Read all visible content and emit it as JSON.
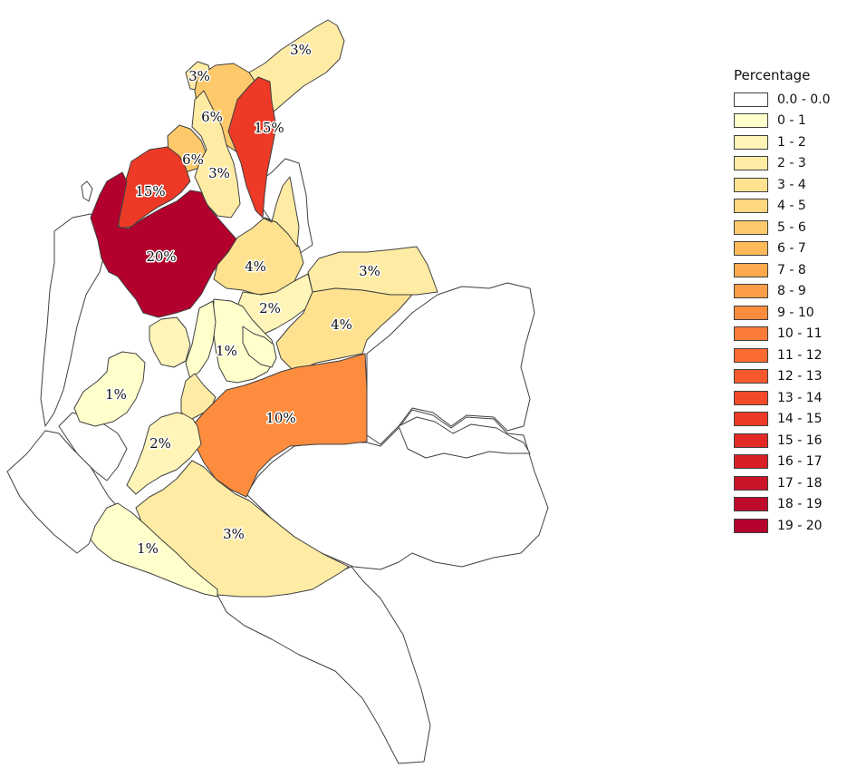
{
  "legend": {
    "title": "Percentage",
    "items": [
      {
        "label": "0.0 - 0.0",
        "color": "#ffffff"
      },
      {
        "label": "0 - 1",
        "color": "#ffffcc"
      },
      {
        "label": "1 - 2",
        "color": "#fff5b8"
      },
      {
        "label": "2 - 3",
        "color": "#ffeca4"
      },
      {
        "label": "3 - 4",
        "color": "#fee290"
      },
      {
        "label": "4 - 5",
        "color": "#fed77e"
      },
      {
        "label": "5 - 6",
        "color": "#fec96a"
      },
      {
        "label": "6 - 7",
        "color": "#feba5a"
      },
      {
        "label": "7 - 8",
        "color": "#fdab4e"
      },
      {
        "label": "8 - 9",
        "color": "#fd9c46"
      },
      {
        "label": "9 - 10",
        "color": "#fd8c3e"
      },
      {
        "label": "10 - 11",
        "color": "#fc7c37"
      },
      {
        "label": "11 - 12",
        "color": "#fb6a31"
      },
      {
        "label": "12 - 13",
        "color": "#f7592c"
      },
      {
        "label": "13 - 14",
        "color": "#f24a29"
      },
      {
        "label": "14 - 15",
        "color": "#ec3a26"
      },
      {
        "label": "15 - 16",
        "color": "#e32a24"
      },
      {
        "label": "16 - 17",
        "color": "#d81f26"
      },
      {
        "label": "17 - 18",
        "color": "#cc1429"
      },
      {
        "label": "18 - 19",
        "color": "#be0a2b"
      },
      {
        "label": "19 - 20",
        "color": "#b3002c"
      }
    ]
  },
  "regions": [
    {
      "id": "r01",
      "label": "3%",
      "value": 3,
      "color": "#ffeca4"
    },
    {
      "id": "r02",
      "label": "3%",
      "value": 3,
      "color": "#ffeca4"
    },
    {
      "id": "r03",
      "label": "6%",
      "value": 6,
      "color": "#fec96a"
    },
    {
      "id": "r04",
      "label": "15%",
      "value": 15,
      "color": "#ec3a26"
    },
    {
      "id": "r05",
      "label": "6%",
      "value": 6,
      "color": "#fec96a"
    },
    {
      "id": "r06",
      "label": "3%",
      "value": 3,
      "color": "#ffeca4"
    },
    {
      "id": "r07",
      "label": "15%",
      "value": 15,
      "color": "#ec3a26"
    },
    {
      "id": "r08",
      "label": "20%",
      "value": 20,
      "color": "#b3002c"
    },
    {
      "id": "r09",
      "label": "4%",
      "value": 4,
      "color": "#fee290"
    },
    {
      "id": "r10",
      "label": "3%",
      "value": 3,
      "color": "#ffeca4"
    },
    {
      "id": "r11",
      "label": "2%",
      "value": 2,
      "color": "#fff5b8"
    },
    {
      "id": "r12",
      "label": "4%",
      "value": 4,
      "color": "#fee290"
    },
    {
      "id": "r13",
      "label": "1%",
      "value": 1,
      "color": "#ffffcc"
    },
    {
      "id": "r14",
      "label": "10%",
      "value": 10,
      "color": "#fd8c3e"
    },
    {
      "id": "r15",
      "label": "1%",
      "value": 1,
      "color": "#ffffcc"
    },
    {
      "id": "r16",
      "label": "2%",
      "value": 2,
      "color": "#fff5b8"
    },
    {
      "id": "r17",
      "label": "3%",
      "value": 3,
      "color": "#ffeca4"
    },
    {
      "id": "r18",
      "label": "1%",
      "value": 1,
      "color": "#ffffcc"
    },
    {
      "id": "r19",
      "label": "",
      "value": 1,
      "color": "#ffffcc"
    },
    {
      "id": "r20",
      "label": "",
      "value": 3,
      "color": "#ffeca4"
    },
    {
      "id": "r21",
      "label": "",
      "value": 3,
      "color": "#ffeca4"
    },
    {
      "id": "r22",
      "label": "",
      "value": 2,
      "color": "#fff5b8"
    },
    {
      "id": "r23",
      "label": "",
      "value": 1,
      "color": "#ffffcc"
    },
    {
      "id": "w01",
      "label": "",
      "value": 0,
      "color": "#ffffff"
    },
    {
      "id": "w02",
      "label": "",
      "value": 0,
      "color": "#ffffff"
    },
    {
      "id": "w03",
      "label": "",
      "value": 0,
      "color": "#ffffff"
    },
    {
      "id": "w04",
      "label": "",
      "value": 0,
      "color": "#ffffff"
    },
    {
      "id": "w05",
      "label": "",
      "value": 0,
      "color": "#ffffff"
    },
    {
      "id": "w06",
      "label": "",
      "value": 0,
      "color": "#ffffff"
    },
    {
      "id": "w07",
      "label": "",
      "value": 0,
      "color": "#ffffff"
    },
    {
      "id": "w08",
      "label": "",
      "value": 0,
      "color": "#ffffff"
    },
    {
      "id": "w09",
      "label": "",
      "value": 0,
      "color": "#ffffff"
    }
  ]
}
